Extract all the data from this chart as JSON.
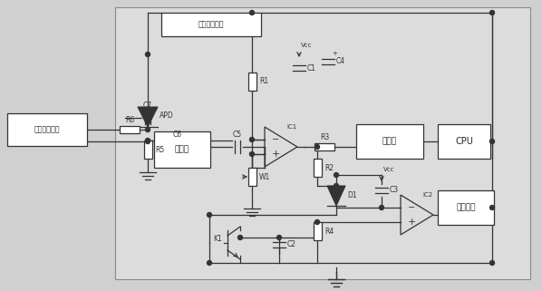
{
  "bg": "#d0d0d0",
  "inner_bg": "#e0e0e0",
  "lc": "#333333",
  "lw": 0.9,
  "labels": {
    "bias_dc": "直流偏置电压",
    "bias_hv": "高压偏置电压",
    "amp": "放大器",
    "counter": "计数器",
    "cpu": "CPU",
    "alarm": "报警阁限",
    "apd": "APD",
    "ic1": "IC1",
    "ic2": "IC2",
    "d1": "D1",
    "vcc": "Vcc",
    "r1": "R1",
    "r2": "R2",
    "r3": "R3",
    "r4": "R4",
    "r5": "R5",
    "r6": "R6",
    "c1": "C1",
    "c2": "C2",
    "c3": "C3",
    "c4": "C4",
    "c5": "C5",
    "c6": "C6",
    "c7": "C7",
    "w1": "W1",
    "k1": "K1"
  }
}
